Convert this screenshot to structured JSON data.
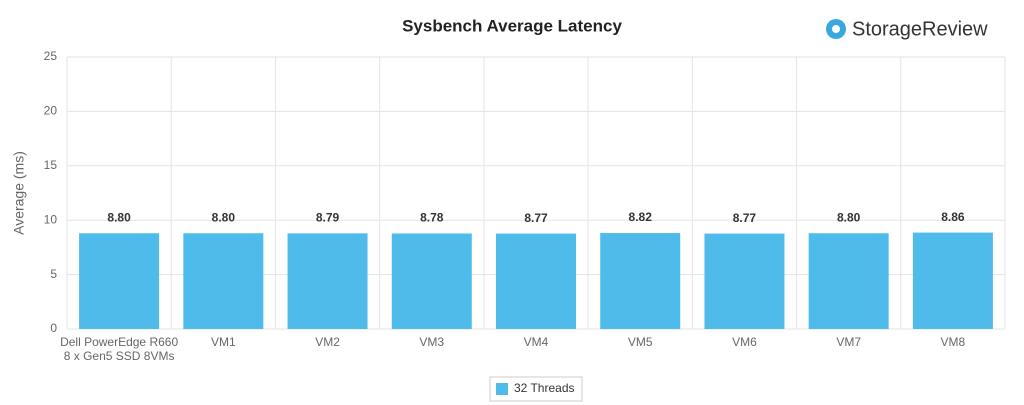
{
  "chart_data": {
    "type": "bar",
    "title": "Sysbench Average Latency",
    "logo": "StorageReview",
    "y_label": "Average (ms)",
    "categories": [
      [
        "Dell PowerEdge R660",
        "8 x Gen5 SSD 8VMs"
      ],
      "VM1",
      "VM2",
      "VM3",
      "VM4",
      "VM5",
      "VM6",
      "VM7",
      "VM8"
    ],
    "series": [
      {
        "name": "32 Threads",
        "color": "#4fbbea",
        "values": [
          8.8,
          8.8,
          8.79,
          8.78,
          8.77,
          8.82,
          8.77,
          8.8,
          8.86
        ],
        "value_labels": [
          "8.80",
          "8.80",
          "8.79",
          "8.78",
          "8.77",
          "8.82",
          "8.77",
          "8.80",
          "8.86"
        ]
      }
    ],
    "ylim": [
      0,
      25
    ],
    "yticks": [
      0,
      5,
      10,
      15,
      20,
      25
    ],
    "grid": true
  }
}
